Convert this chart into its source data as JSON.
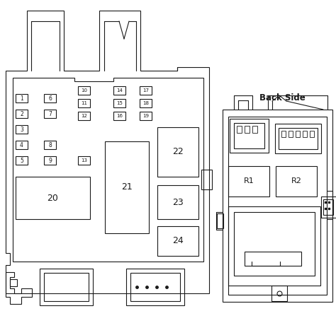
{
  "bg_color": "#ffffff",
  "line_color": "#1a1a1a",
  "lw": 0.8,
  "back_side_label": "Back Side",
  "fig_w": 4.74,
  "fig_h": 4.4,
  "dpi": 100
}
